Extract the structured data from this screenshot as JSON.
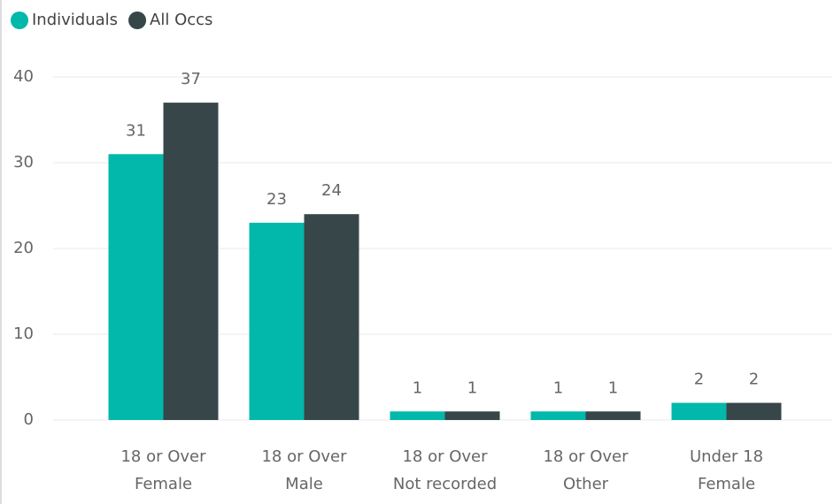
{
  "chart_data": {
    "type": "bar",
    "categories": [
      "18 or Over\nFemale",
      "18 or Over\nMale",
      "18 or Over\nNot recorded",
      "18 or Over\nOther",
      "Under 18\nFemale"
    ],
    "series": [
      {
        "name": "Individuals",
        "color": "#01b8aa",
        "values": [
          31,
          23,
          1,
          1,
          2
        ]
      },
      {
        "name": "All Occs",
        "color": "#374649",
        "values": [
          37,
          24,
          1,
          1,
          2
        ]
      }
    ],
    "ylim": [
      0,
      40
    ],
    "yticks": [
      0,
      10,
      20,
      30,
      40
    ],
    "grid": true,
    "legend": "top-left"
  }
}
